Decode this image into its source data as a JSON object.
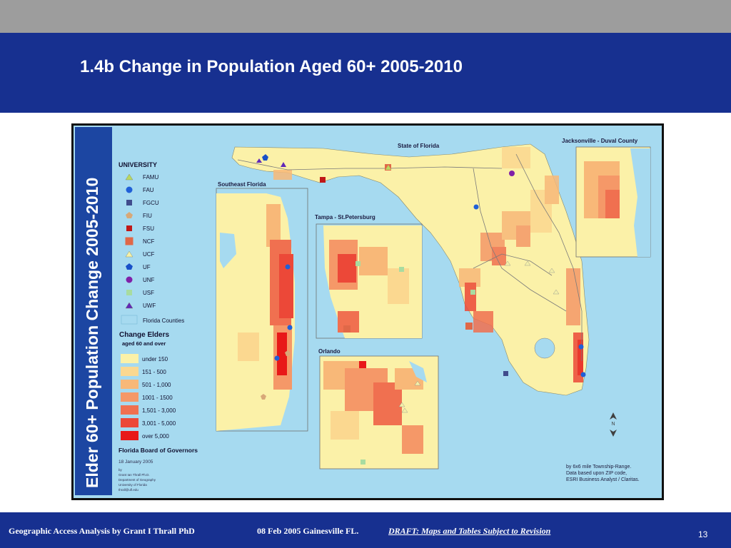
{
  "slide": {
    "title": "1.4b Change in Population Aged 60+ 2005-2010",
    "page_number": "13"
  },
  "footer": {
    "author": "Geographic Access Analysis by Grant I Thrall PhD",
    "date_place": "08 Feb 2005  Gainesville FL.",
    "draft": "DRAFT:  Maps and Tables Subject to Revision"
  },
  "map": {
    "side_title": "Elder 60+ Population Change 2005-2010",
    "main_title": "State of Florida",
    "insets": {
      "southeast": "Southeast Florida",
      "tampa": "Tampa - St.Petersburg",
      "orlando": "Orlando",
      "jacksonville": "Jacksonville - Duval County"
    },
    "legend": {
      "university_heading": "UNIVERSITY",
      "universities": [
        {
          "name": "FAMU",
          "icon": "triangle-icon",
          "color": "#b8d860"
        },
        {
          "name": "FAU",
          "icon": "circle-icon",
          "color": "#2060d8"
        },
        {
          "name": "FGCU",
          "icon": "square-icon",
          "color": "#404c8c"
        },
        {
          "name": "FIU",
          "icon": "pentagon-icon",
          "color": "#d8a878"
        },
        {
          "name": "FSU",
          "icon": "square-icon",
          "color": "#c01818"
        },
        {
          "name": "NCF",
          "icon": "square-icon",
          "color": "#e06848"
        },
        {
          "name": "UCF",
          "icon": "triangle-icon",
          "color": "#f4f0a8"
        },
        {
          "name": "UF",
          "icon": "pentagon-icon",
          "color": "#1850c8"
        },
        {
          "name": "UNF",
          "icon": "circle-icon",
          "color": "#8020a8"
        },
        {
          "name": "USF",
          "icon": "square-icon",
          "color": "#a8dca0"
        },
        {
          "name": "UWF",
          "icon": "triangle-icon",
          "color": "#6028b8"
        }
      ],
      "counties_label": "Florida Counties",
      "change_heading_1": "Change Elders",
      "change_heading_2": "aged 60 and over",
      "classes": [
        {
          "label": "under 150",
          "color": "#fbf1a8"
        },
        {
          "label": "151 - 500",
          "color": "#fbd890"
        },
        {
          "label": "501 - 1,000",
          "color": "#f8b878"
        },
        {
          "label": "1001 - 1500",
          "color": "#f59868"
        },
        {
          "label": "1,501 - 3,000",
          "color": "#f07050"
        },
        {
          "label": "3,001 - 5,000",
          "color": "#ec4838"
        },
        {
          "label": "over 5,000",
          "color": "#e81818"
        }
      ],
      "board": "Florida Board of Governors",
      "date": "18 January 2005",
      "credits": [
        "by",
        "Grant Ian Thrall Ph.D.",
        "Department of Geography",
        "University of Florida",
        "thrall@ufl.edu"
      ]
    },
    "note": [
      "by 6x6 mile Township-Range.",
      "Data based upon ZIP code,",
      "ESRI Business Analyst / Claritas."
    ],
    "colors": {
      "water": "#a6daf0",
      "land": "#fbf1a8",
      "legend_bg": "#a6daf0",
      "side_bar": "#1c46a2"
    }
  }
}
